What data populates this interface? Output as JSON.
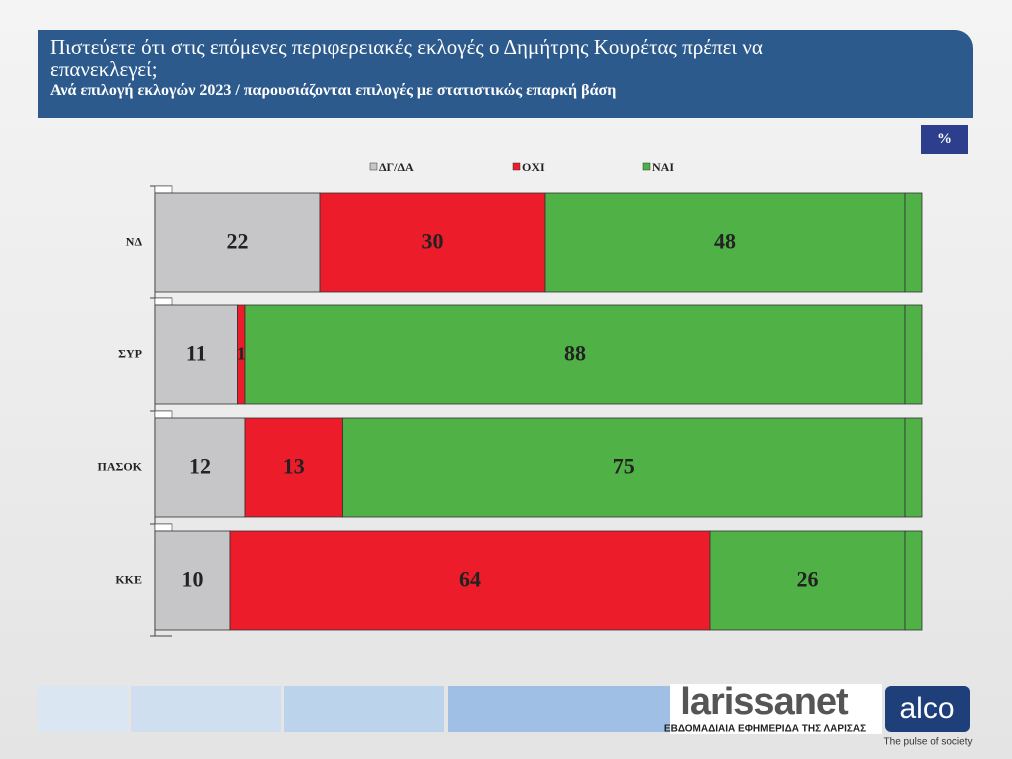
{
  "chart_data": {
    "type": "stacked-barh",
    "title": "Πιστεύετε ότι στις επόμενες περιφερειακές εκλογές ο Δημήτρης Κουρέτας πρέπει να επανεκλεγεί;",
    "subtitle": "Ανά επιλογή εκλογών 2023 / παρουσιάζονται επιλογές με στατιστικώς επαρκή βάση",
    "unit": "%",
    "categories": [
      "ΝΔ",
      "ΣΥΡ",
      "ΠΑΣΟΚ",
      "ΚΚΕ"
    ],
    "series": [
      {
        "name": "ΔΓ/ΔΑ",
        "color": "#c6c6c8",
        "values": [
          22,
          11,
          12,
          10
        ]
      },
      {
        "name": "ΟΧΙ",
        "color": "#ed1c2a",
        "values": [
          30,
          1,
          13,
          64
        ]
      },
      {
        "name": "ΝΑΙ",
        "color": "#4fb146",
        "values": [
          48,
          88,
          75,
          26
        ]
      }
    ],
    "xlim": [
      0,
      100
    ]
  },
  "footer": {
    "logo": "larissanet",
    "logo_tagline": "ΕΒΔΟΜΑΔΙΑΙΑ ΕΦΗΜΕΡΙΔΑ ΤΗΣ ΛΑΡΙΣΑΣ",
    "brand": "alco",
    "brand_tagline": "The pulse of society"
  }
}
